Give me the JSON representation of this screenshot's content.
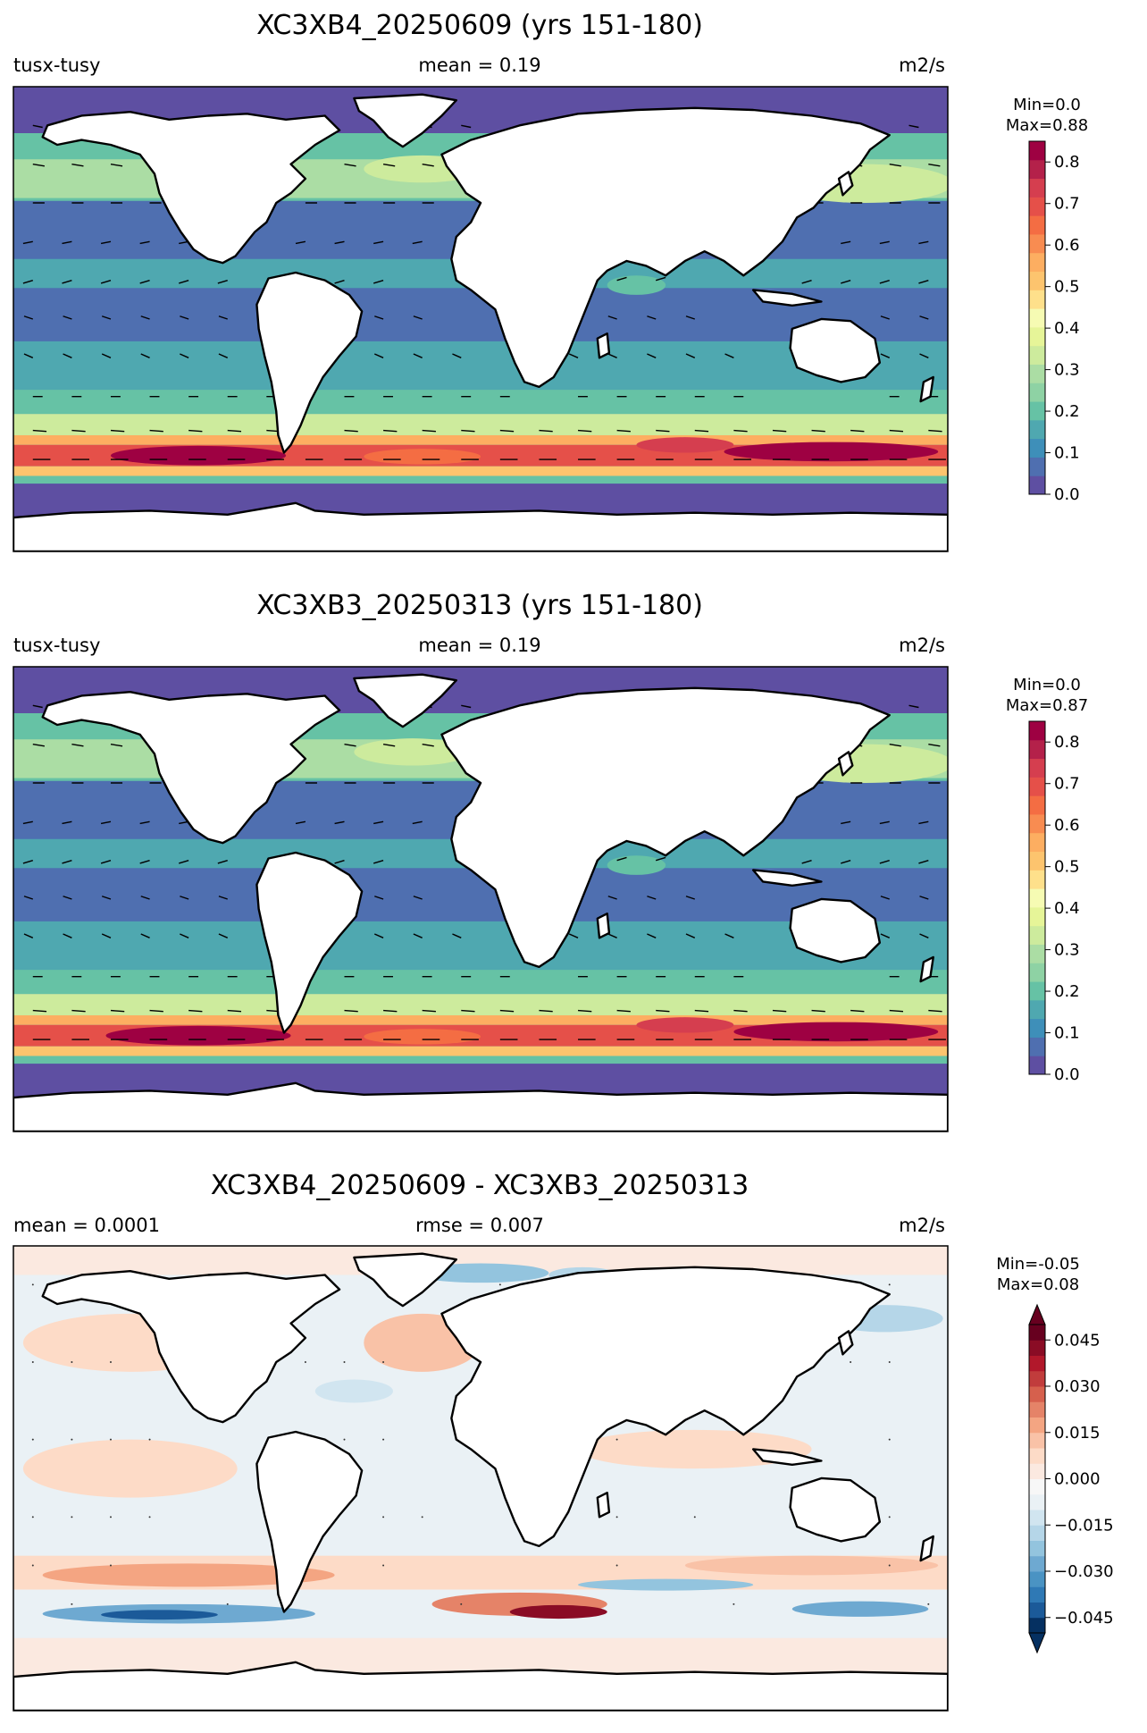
{
  "chart_data": [
    {
      "type": "heatmap",
      "title": "XC3XB4_20250609 (yrs 151-180)",
      "left_label": "tusx-tusy",
      "center_label": "mean = 0.19",
      "units": "m2/s",
      "colorbar": {
        "minmax_line1": "Min=0.0",
        "minmax_line2": "Max=0.88",
        "range": [
          0.0,
          0.85
        ],
        "tick_values": [
          0.0,
          0.1,
          0.2,
          0.3,
          0.4,
          0.5,
          0.6,
          0.7,
          0.8
        ],
        "tick_labels": [
          "0.0",
          "0.1",
          "0.2",
          "0.3",
          "0.4",
          "0.5",
          "0.6",
          "0.7",
          "0.8"
        ],
        "colormap": "Spectral_r",
        "colors": [
          "#5e4fa2",
          "#4f6fb0",
          "#3e8fb9",
          "#4fa8b0",
          "#66c2a5",
          "#8ed2a4",
          "#abdda4",
          "#cdeb9d",
          "#e6f598",
          "#f6fbb3",
          "#fee08b",
          "#fdc46e",
          "#fdae61",
          "#f88c51",
          "#f46d43",
          "#e55049",
          "#d53e4f",
          "#b4214a",
          "#9e0142"
        ]
      }
    },
    {
      "type": "heatmap",
      "title": "XC3XB3_20250313 (yrs 151-180)",
      "left_label": "tusx-tusy",
      "center_label": "mean = 0.19",
      "units": "m2/s",
      "colorbar": {
        "minmax_line1": "Min=0.0",
        "minmax_line2": "Max=0.87",
        "range": [
          0.0,
          0.85
        ],
        "tick_values": [
          0.0,
          0.1,
          0.2,
          0.3,
          0.4,
          0.5,
          0.6,
          0.7,
          0.8
        ],
        "tick_labels": [
          "0.0",
          "0.1",
          "0.2",
          "0.3",
          "0.4",
          "0.5",
          "0.6",
          "0.7",
          "0.8"
        ],
        "colormap": "Spectral_r",
        "colors": [
          "#5e4fa2",
          "#4f6fb0",
          "#3e8fb9",
          "#4fa8b0",
          "#66c2a5",
          "#8ed2a4",
          "#abdda4",
          "#cdeb9d",
          "#e6f598",
          "#f6fbb3",
          "#fee08b",
          "#fdc46e",
          "#fdae61",
          "#f88c51",
          "#f46d43",
          "#e55049",
          "#d53e4f",
          "#b4214a",
          "#9e0142"
        ]
      }
    },
    {
      "type": "heatmap",
      "title": "XC3XB4_20250609 - XC3XB3_20250313",
      "left_label": "mean = 0.0001",
      "center_label": "rmse = 0.007",
      "units": "m2/s",
      "colorbar": {
        "minmax_line1": "Min=-0.05",
        "minmax_line2": "Max=0.08",
        "range": [
          -0.05,
          0.05
        ],
        "extend": "both",
        "tick_values": [
          -0.045,
          -0.03,
          -0.015,
          0.0,
          0.015,
          0.03,
          0.045
        ],
        "tick_labels": [
          "−0.045",
          "−0.030",
          "−0.015",
          "0.000",
          "0.015",
          "0.030",
          "0.045"
        ],
        "colormap": "RdBu_r",
        "colors": [
          "#053061",
          "#1b5a99",
          "#2f79b5",
          "#4a93c3",
          "#6ea9d1",
          "#93c4de",
          "#b5d6e8",
          "#d1e5f0",
          "#eaf1f5",
          "#f7f7f7",
          "#fbe9e0",
          "#fddbc7",
          "#f9c2a7",
          "#f4a582",
          "#e58368",
          "#d6604d",
          "#c13c3c",
          "#b2182b",
          "#8a0c25",
          "#67001f"
        ],
        "extend_low_color": "#053061",
        "extend_high_color": "#67001f"
      }
    }
  ]
}
